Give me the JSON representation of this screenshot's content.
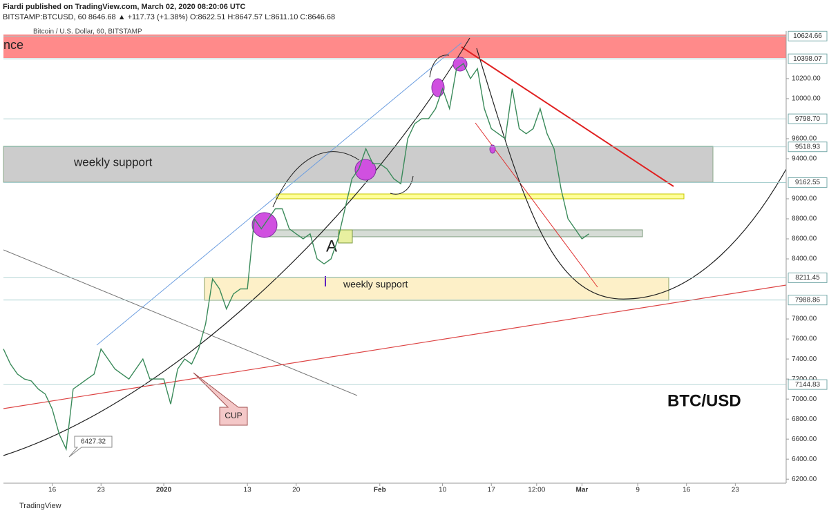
{
  "header": {
    "publisher": "Fiardi published on TradingView.com, March 02, 2020 08:20:06 UTC",
    "quote": "BITSTAMP:BTCUSD, 60  8646.68  ▲ +117.73 (+1.38%)  O:8622.51  H:8647.57  L:8611.10  C:8646.68"
  },
  "chart_data": {
    "type": "line",
    "title": "Bitcoin / U.S. Dollar, 60, BITSTAMP",
    "color": "#3a8a5a",
    "x": [
      -23,
      -22,
      -21,
      -20,
      -19,
      -18,
      -17,
      -16,
      -15,
      -14,
      -13,
      -12,
      -11,
      -10,
      -9,
      -8,
      -7,
      -6,
      -5,
      -4,
      -3,
      -2,
      -1,
      0,
      1,
      2,
      3,
      4,
      5,
      6,
      7,
      8,
      9,
      10,
      11,
      12,
      13,
      14,
      15,
      16,
      17,
      18,
      19,
      20,
      21,
      22,
      23,
      24,
      25,
      26,
      27,
      28,
      29,
      30,
      31,
      32,
      33,
      34,
      35,
      36,
      37,
      38,
      39,
      40,
      41,
      42,
      43,
      44,
      45,
      46,
      47,
      48,
      49,
      50,
      51,
      52,
      53,
      54,
      55,
      56,
      57,
      58,
      59,
      60,
      61
    ],
    "values": [
      7500,
      7350,
      7250,
      7200,
      7180,
      7100,
      7050,
      6900,
      6650,
      6500,
      7100,
      7150,
      7200,
      7250,
      7500,
      7400,
      7300,
      7250,
      7200,
      7300,
      7400,
      7200,
      7200,
      7200,
      6950,
      7300,
      7400,
      7350,
      7500,
      7750,
      8200,
      8100,
      7900,
      8050,
      8100,
      8100,
      8800,
      8700,
      8800,
      8900,
      8900,
      8700,
      8650,
      8600,
      8650,
      8400,
      8350,
      8400,
      8600,
      8900,
      9200,
      9300,
      9500,
      9350,
      9350,
      9300,
      9200,
      9150,
      9600,
      9750,
      9800,
      9800,
      9900,
      10100,
      9900,
      10300,
      10350,
      10200,
      10300,
      9900,
      9700,
      9650,
      9600,
      10100,
      9700,
      9650,
      9700,
      9900,
      9650,
      9500,
      9100,
      8800,
      8700,
      8600,
      8650
    ],
    "xlim": [
      -23,
      89.3
    ],
    "xticks": [
      {
        "value": -16,
        "label": "16"
      },
      {
        "value": -9,
        "label": "23"
      },
      {
        "value": 0,
        "label": "2020"
      },
      {
        "value": 12,
        "label": "13"
      },
      {
        "value": 19,
        "label": "20"
      },
      {
        "value": 31,
        "label": "Feb"
      },
      {
        "value": 40,
        "label": "10"
      },
      {
        "value": 47,
        "label": "17"
      },
      {
        "value": 53.5,
        "label": "12:00"
      },
      {
        "value": 60,
        "label": "Mar"
      },
      {
        "value": 68,
        "label": "9"
      },
      {
        "value": 75,
        "label": "16"
      },
      {
        "value": 82,
        "label": "23"
      }
    ],
    "ylim": [
      6160,
      10675
    ],
    "yticks": [
      {
        "value": 6200,
        "label": "6200.00"
      },
      {
        "value": 6400,
        "label": "6400.00"
      },
      {
        "value": 6600,
        "label": "6600.00"
      },
      {
        "value": 6800,
        "label": "6800.00"
      },
      {
        "value": 7000,
        "label": "7000.00"
      },
      {
        "value": 7200,
        "label": "7200.00"
      },
      {
        "value": 7400,
        "label": "7400.00"
      },
      {
        "value": 7600,
        "label": "7600.00"
      },
      {
        "value": 7800,
        "label": "7800.00"
      },
      {
        "value": 8400,
        "label": "8400.00"
      },
      {
        "value": 8600,
        "label": "8600.00"
      },
      {
        "value": 8800,
        "label": "8800.00"
      },
      {
        "value": 9000,
        "label": "9000.00"
      },
      {
        "value": 9400,
        "label": "9400.00"
      },
      {
        "value": 9600,
        "label": "9600.00"
      },
      {
        "value": 10000,
        "label": "10000.00"
      },
      {
        "value": 10200,
        "label": "10200.00"
      }
    ],
    "levels": [
      {
        "value": 10624.66,
        "label": "10624.66"
      },
      {
        "value": 10398.07,
        "label": "10398.07"
      },
      {
        "value": 9798.7,
        "label": "9798.70"
      },
      {
        "value": 9518.93,
        "label": "9518.93"
      },
      {
        "value": 9162.55,
        "label": "9162.55"
      },
      {
        "value": 8211.45,
        "label": "8211.45"
      },
      {
        "value": 7988.86,
        "label": "7988.86"
      },
      {
        "value": 7144.83,
        "label": "7144.83"
      }
    ],
    "annotations": [
      "nce",
      "weekly support",
      "weekly support",
      "A",
      "CUP",
      "6427.32"
    ],
    "watermark": "BTC/USD"
  },
  "footer": "TradingView"
}
